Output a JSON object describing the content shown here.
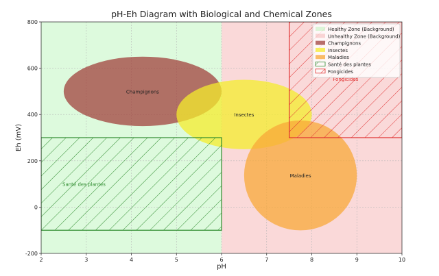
{
  "chart_data": {
    "type": "area",
    "title": "pH-Eh Diagram with Biological and Chemical Zones",
    "xlabel": "pH",
    "ylabel": "Eh (mV)",
    "xlim": [
      2,
      10
    ],
    "ylim": [
      -200,
      800
    ],
    "xticks": [
      2,
      3,
      4,
      5,
      6,
      7,
      8,
      9,
      10
    ],
    "yticks": [
      -200,
      0,
      200,
      400,
      600,
      800
    ],
    "grid": true,
    "legend_position": "top-right",
    "background_zones": [
      {
        "name": "Healthy Zone (Background)",
        "x": [
          2,
          6
        ],
        "y": [
          -200,
          800
        ],
        "color": "#90ee90"
      },
      {
        "name": "Unhealthy Zone (Background)",
        "x": [
          6,
          10
        ],
        "y": [
          -200,
          800
        ],
        "color": "#f08080"
      }
    ],
    "ellipses": [
      {
        "name": "Champignons",
        "label": "Champignons",
        "center": [
          4.25,
          500
        ],
        "width": 3.5,
        "height": 300,
        "color": "#a0413c"
      },
      {
        "name": "Insectes",
        "label": "Insectes",
        "center": [
          6.5,
          400
        ],
        "width": 3.0,
        "height": 300,
        "color": "#f4ec2c"
      },
      {
        "name": "Maladies",
        "label": "Maladies",
        "center": [
          7.75,
          137
        ],
        "width": 2.5,
        "height": 475,
        "color": "#f8a838"
      }
    ],
    "hatched_zones": [
      {
        "name": "Santé des plantes",
        "label": "Santé des plantes",
        "x": [
          2,
          6
        ],
        "y": [
          -100,
          300
        ],
        "color": "#2e8b2e"
      },
      {
        "name": "Fongicides",
        "label": "Fongicides",
        "x": [
          7.5,
          10
        ],
        "y": [
          300,
          800
        ],
        "color": "#e03030"
      }
    ],
    "legend": [
      "Healthy Zone (Background)",
      "Unhealthy Zone (Background)",
      "Champignons",
      "Insectes",
      "Maladies",
      "Santé des plantes",
      "Fongicides"
    ]
  }
}
